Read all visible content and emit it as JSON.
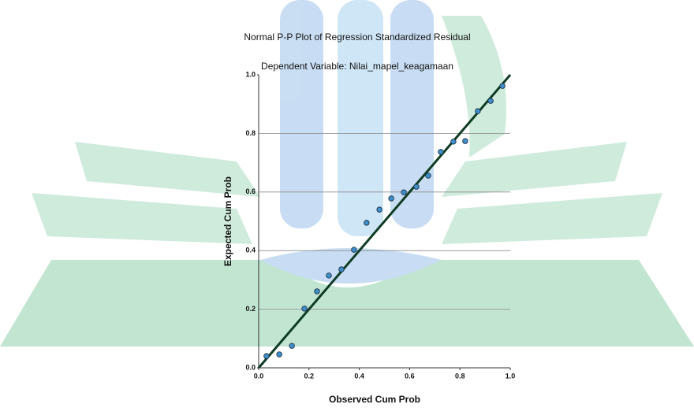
{
  "chart_data": {
    "type": "scatter",
    "title": "Normal P-P Plot of Regression Standardized Residual",
    "subtitle": "Dependent Variable: Nilai_mapel_keagamaan",
    "x_label": "Observed Cum Prob",
    "y_label": "Expected Cum Prob",
    "x": [
      0.031,
      0.082,
      0.132,
      0.182,
      0.232,
      0.279,
      0.329,
      0.379,
      0.429,
      0.48,
      0.527,
      0.577,
      0.627,
      0.674,
      0.724,
      0.774,
      0.821,
      0.871,
      0.922,
      0.969
    ],
    "series": [
      {
        "color": "#3d8ec9",
        "values": [
          0.04,
          0.046,
          0.075,
          0.202,
          0.261,
          0.315,
          0.336,
          0.403,
          0.495,
          0.54,
          0.578,
          0.599,
          0.618,
          0.656,
          0.737,
          0.772,
          0.774,
          0.876,
          0.911,
          0.962
        ]
      }
    ],
    "xlim": [
      0,
      1
    ],
    "ylim": [
      0,
      1
    ],
    "xticks": [
      {
        "value": 0,
        "label": "0.0"
      },
      0.2,
      0.4,
      0.6,
      0.8,
      {
        "value": 1,
        "label": "1.0"
      }
    ],
    "yticks": [
      {
        "value": 0,
        "label": "0.0"
      },
      0.2,
      0.4,
      0.6,
      0.8,
      {
        "value": 1,
        "label": "1.0"
      }
    ],
    "grid": true,
    "line_color": "#0f3d24"
  }
}
